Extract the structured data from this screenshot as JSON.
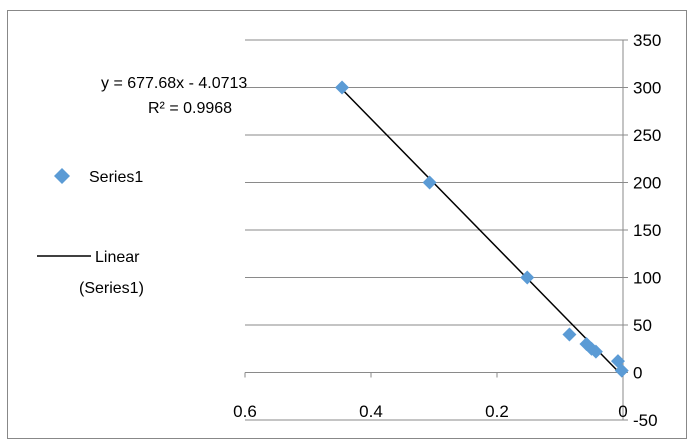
{
  "chart_data": {
    "type": "scatter",
    "xlim": [
      0.6,
      0
    ],
    "ylim": [
      -50,
      350
    ],
    "x_ticks": [
      0.6,
      0.4,
      0.2,
      0
    ],
    "y_ticks": [
      -50,
      0,
      50,
      100,
      150,
      200,
      250,
      300,
      350
    ],
    "y_axis_side": "right",
    "x_axis_reversed": true,
    "grid": {
      "horizontal": true,
      "vertical": false
    },
    "series": [
      {
        "name": "Series1",
        "marker": "diamond",
        "color": "#5B9BD5",
        "x": [
          0.446,
          0.307,
          0.152,
          0.085,
          0.058,
          0.05,
          0.043,
          0.008,
          0.002
        ],
        "y": [
          300,
          200,
          100,
          40,
          30,
          25,
          22,
          12,
          2
        ]
      }
    ],
    "trendline": {
      "type": "linear",
      "name": "Linear (Series1)",
      "color": "#000000",
      "slope": 677.68,
      "intercept": -4.0713,
      "x_range": [
        0,
        0.446
      ],
      "equation_label": "y = 677.68x - 4.0713",
      "r2_label": "R² = 0.9968"
    },
    "legend": {
      "placement": "left",
      "entries": [
        {
          "label": "Series1",
          "symbol": "diamond"
        },
        {
          "label_line1": "Linear",
          "label_line2": "(Series1)",
          "symbol": "line"
        }
      ]
    }
  }
}
